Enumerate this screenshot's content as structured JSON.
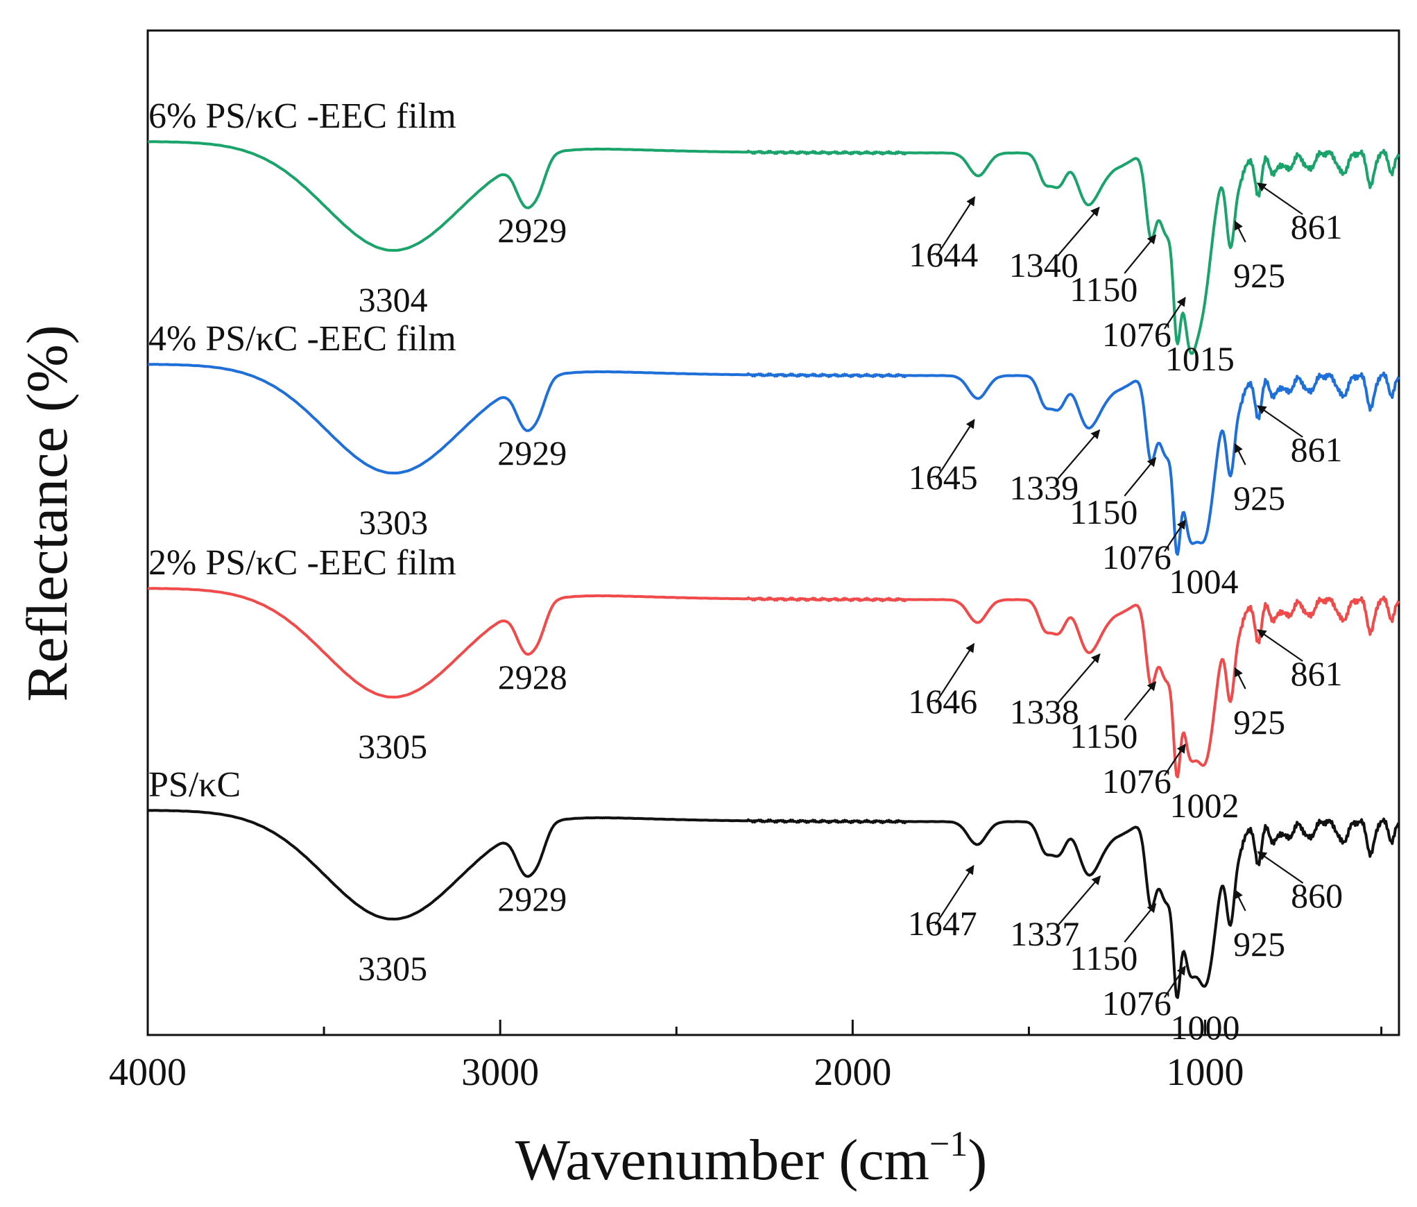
{
  "chart_data": {
    "type": "line",
    "title": "",
    "xlabel": "Wavenumber (cm",
    "xlabel_sup": "−1",
    "xlabel_close": ")",
    "ylabel": "Reflectance (%)",
    "xlim": [
      4000,
      450
    ],
    "x_reversed": true,
    "xticks": [
      4000,
      3000,
      2000,
      1000
    ],
    "y_ticks_shown": false,
    "series": [
      {
        "name": "6% PS/κC -EEC film",
        "color": "#1aa36b",
        "offset": 3,
        "peaks": [
          {
            "label": "3304",
            "wavenumber": 3304
          },
          {
            "label": "2929",
            "wavenumber": 2929
          },
          {
            "label": "1644",
            "wavenumber": 1644
          },
          {
            "label": "1340",
            "wavenumber": 1340
          },
          {
            "label": "1150",
            "wavenumber": 1150
          },
          {
            "label": "1076",
            "wavenumber": 1076
          },
          {
            "label": "1015",
            "wavenumber": 1015
          },
          {
            "label": "925",
            "wavenumber": 925
          },
          {
            "label": "861",
            "wavenumber": 861
          }
        ]
      },
      {
        "name": "4% PS/κC -EEC film",
        "color": "#1f6fd9",
        "offset": 2,
        "peaks": [
          {
            "label": "3303",
            "wavenumber": 3303
          },
          {
            "label": "2929",
            "wavenumber": 2929
          },
          {
            "label": "1645",
            "wavenumber": 1645
          },
          {
            "label": "1339",
            "wavenumber": 1339
          },
          {
            "label": "1150",
            "wavenumber": 1150
          },
          {
            "label": "1076",
            "wavenumber": 1076
          },
          {
            "label": "1004",
            "wavenumber": 1004
          },
          {
            "label": "925",
            "wavenumber": 925
          },
          {
            "label": "861",
            "wavenumber": 861
          }
        ]
      },
      {
        "name": "2% PS/κC -EEC film",
        "color": "#f04a4a",
        "offset": 1,
        "peaks": [
          {
            "label": "3305",
            "wavenumber": 3305
          },
          {
            "label": "2928",
            "wavenumber": 2928
          },
          {
            "label": "1646",
            "wavenumber": 1646
          },
          {
            "label": "1338",
            "wavenumber": 1338
          },
          {
            "label": "1150",
            "wavenumber": 1150
          },
          {
            "label": "1076",
            "wavenumber": 1076
          },
          {
            "label": "1002",
            "wavenumber": 1002
          },
          {
            "label": "925",
            "wavenumber": 925
          },
          {
            "label": "861",
            "wavenumber": 861
          }
        ]
      },
      {
        "name": "PS/κC",
        "color": "#111111",
        "offset": 0,
        "peaks": [
          {
            "label": "3305",
            "wavenumber": 3305
          },
          {
            "label": "2929",
            "wavenumber": 2929
          },
          {
            "label": "1647",
            "wavenumber": 1647
          },
          {
            "label": "1337",
            "wavenumber": 1337
          },
          {
            "label": "1150",
            "wavenumber": 1150
          },
          {
            "label": "1076",
            "wavenumber": 1076
          },
          {
            "label": "1000",
            "wavenumber": 1000
          },
          {
            "label": "925",
            "wavenumber": 925
          },
          {
            "label": "860",
            "wavenumber": 860
          }
        ]
      }
    ]
  }
}
